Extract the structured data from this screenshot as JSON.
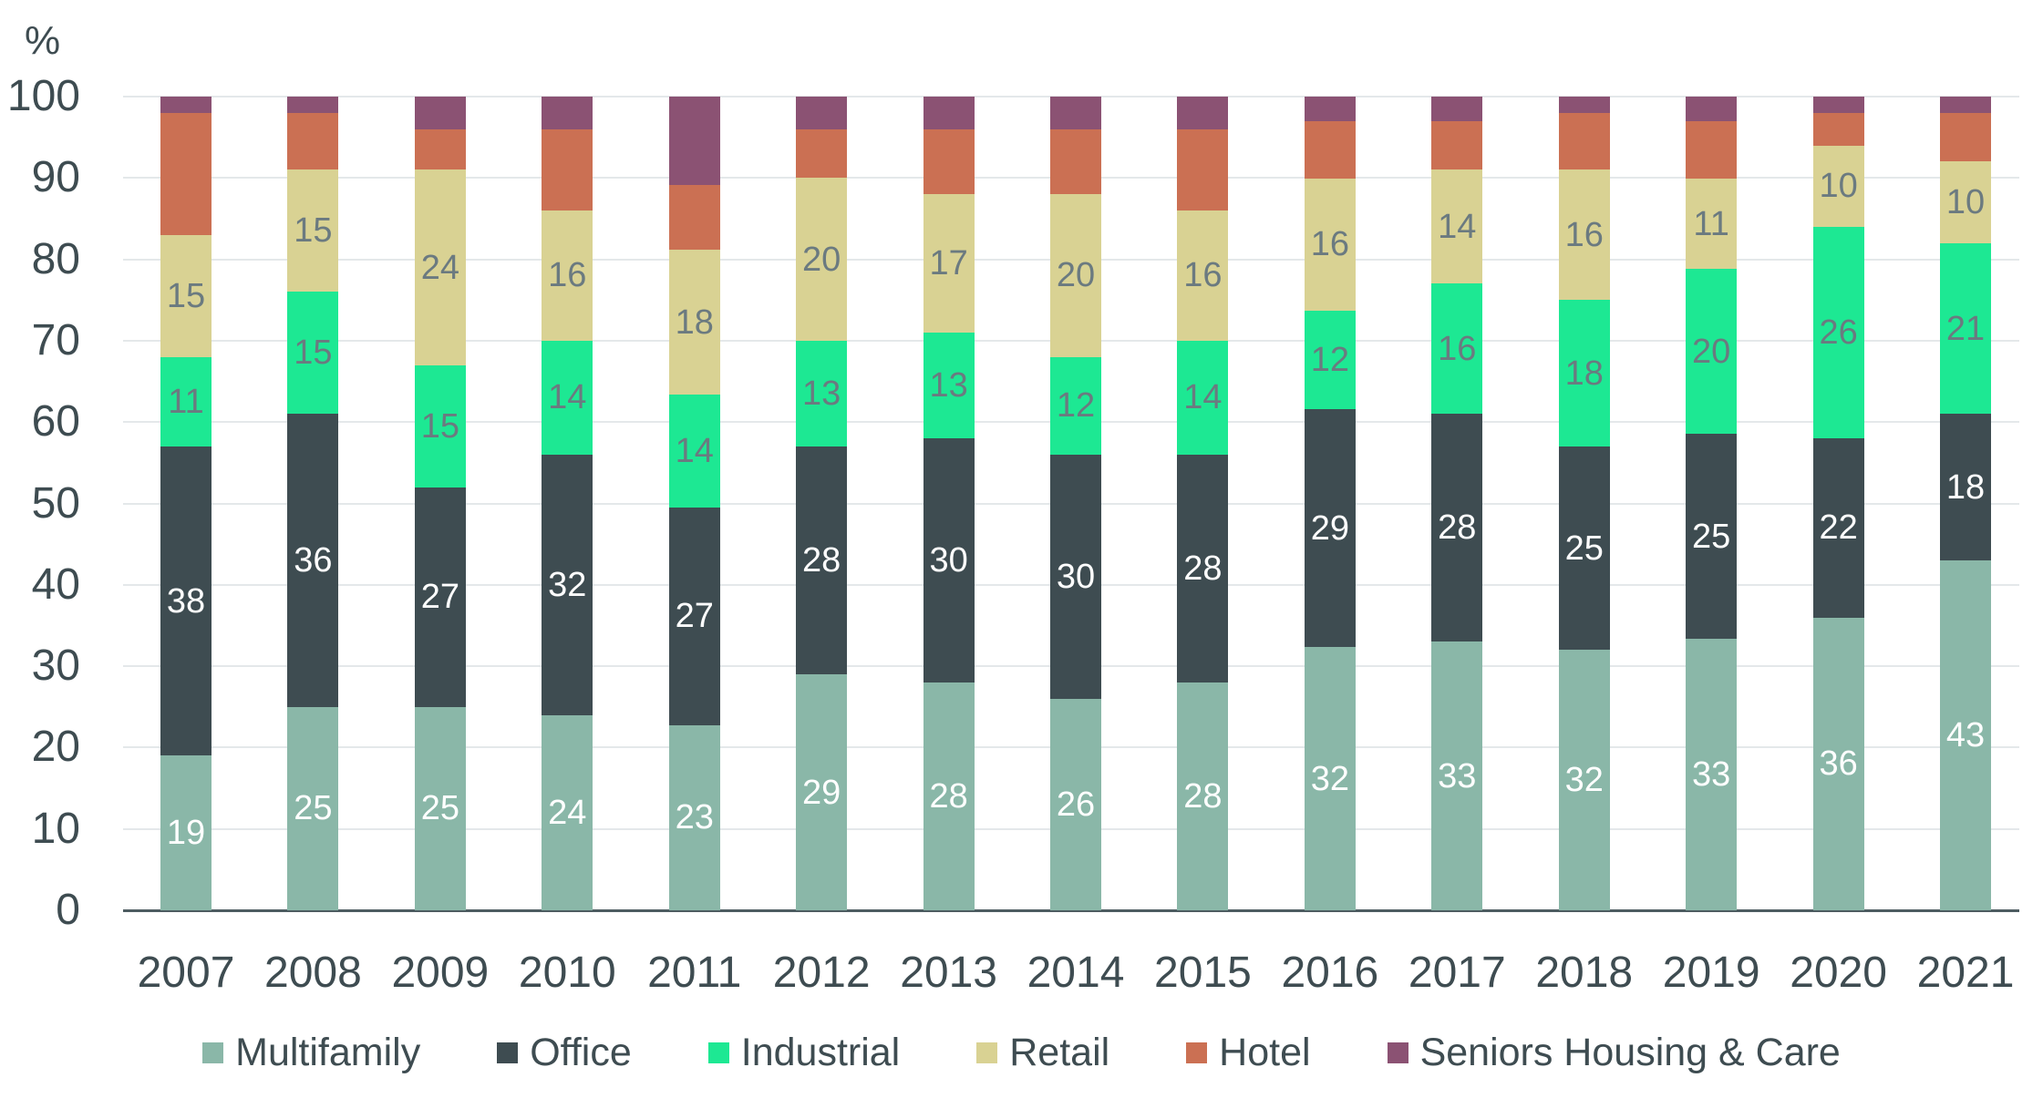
{
  "chart_data": {
    "type": "bar",
    "variant": "stacked-percent-column",
    "title": "",
    "xlabel": "",
    "ylabel": "%",
    "ylim": [
      0,
      100
    ],
    "ytick_step": 10,
    "yticks": [
      0,
      10,
      20,
      30,
      40,
      50,
      60,
      70,
      80,
      90,
      100
    ],
    "grid": "horizontal",
    "legend_position": "bottom",
    "categories": [
      "2007",
      "2008",
      "2009",
      "2010",
      "2011",
      "2012",
      "2013",
      "2014",
      "2015",
      "2016",
      "2017",
      "2018",
      "2019",
      "2020",
      "2021"
    ],
    "series": [
      {
        "name": "Multifamily",
        "color": "#8ab7a8",
        "label_color": "#ffffff",
        "show_labels": true,
        "values": [
          19,
          25,
          25,
          24,
          23,
          29,
          28,
          26,
          28,
          32,
          33,
          32,
          33,
          36,
          43
        ]
      },
      {
        "name": "Office",
        "color": "#3e4c51",
        "label_color": "#ffffff",
        "show_labels": true,
        "values": [
          38,
          36,
          27,
          32,
          27,
          28,
          30,
          30,
          28,
          29,
          28,
          25,
          25,
          22,
          18
        ]
      },
      {
        "name": "Industrial",
        "color": "#1de893",
        "label_color": "#6b7a80",
        "show_labels": true,
        "values": [
          11,
          15,
          15,
          14,
          14,
          13,
          13,
          12,
          14,
          12,
          16,
          18,
          20,
          26,
          21
        ]
      },
      {
        "name": "Retail",
        "color": "#d9d293",
        "label_color": "#6b7a80",
        "show_labels": true,
        "values": [
          15,
          15,
          24,
          16,
          18,
          20,
          17,
          20,
          16,
          16,
          14,
          16,
          11,
          10,
          10
        ]
      },
      {
        "name": "Hotel",
        "color": "#cb7053",
        "label_color": "#6b7a80",
        "show_labels": false,
        "values": [
          15,
          7,
          5,
          10,
          8,
          6,
          8,
          8,
          10,
          7,
          6,
          7,
          7,
          4,
          6
        ]
      },
      {
        "name": "Seniors Housing & Care",
        "color": "#8b5273",
        "label_color": "#ffffff",
        "show_labels": false,
        "values": [
          2,
          2,
          4,
          4,
          11,
          4,
          4,
          4,
          4,
          3,
          3,
          2,
          3,
          2,
          2
        ]
      }
    ]
  },
  "style": {
    "axis_text_color": "#3e4c51",
    "gridline_color": "#e4e8ea",
    "baseline_color": "#4d5c61",
    "background_color": "#ffffff"
  }
}
